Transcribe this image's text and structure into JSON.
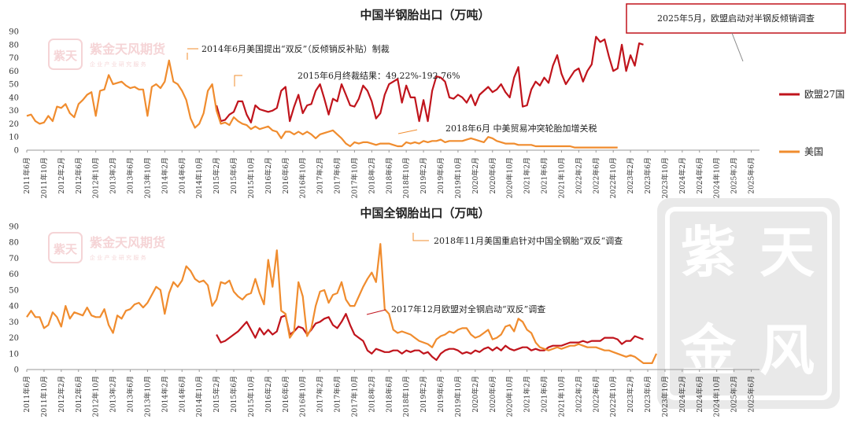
{
  "brand": {
    "name": "紫金天风期货",
    "tagline": "企 业 产 业   研 究 服 务",
    "seal_text": "紫天金风"
  },
  "colors": {
    "eu27": "#C0141C",
    "us": "#F08C2E",
    "annotation_box_border": "#C0141C",
    "axis": "#999999",
    "watermark": "#E9C6C8"
  },
  "x_tick_labels": [
    "2011年6月",
    "2011年10月",
    "2012年2月",
    "2012年6月",
    "2012年10月",
    "2013年2月",
    "2013年6月",
    "2013年10月",
    "2014年2月",
    "2014年6月",
    "2014年10月",
    "2015年2月",
    "2015年6月",
    "2015年10月",
    "2016年2月",
    "2016年6月",
    "2016年10月",
    "2017年2月",
    "2017年6月",
    "2017年10月",
    "2018年2月",
    "2018年6月",
    "2018年10月",
    "2019年2月",
    "2019年6月",
    "2019年10月",
    "2020年2月",
    "2020年6月",
    "2020年10月",
    "2021年2月",
    "2021年6月",
    "2021年10月",
    "2022年2月",
    "2022年6月",
    "2022年10月",
    "2023年2月",
    "2023年6月",
    "2023年10月",
    "2024年2月",
    "2024年6月",
    "2024年10月",
    "2025年2月",
    "2025年6月"
  ],
  "chart_data": [
    {
      "type": "line",
      "title": "中国半钢胎出口（万吨）",
      "ylim": [
        0,
        90
      ],
      "yticks": [
        0,
        10,
        20,
        30,
        40,
        50,
        60,
        70,
        80,
        90
      ],
      "legend_position": "right",
      "series": [
        {
          "name": "欧盟27国",
          "color": "#C0141C",
          "start_month": "2015年2月",
          "values": [
            34,
            22,
            23,
            27,
            29,
            37,
            37,
            27,
            21,
            34,
            31,
            30,
            29,
            30,
            32,
            45,
            48,
            22,
            33,
            42,
            28,
            34,
            35,
            45,
            50,
            39,
            27,
            39,
            37,
            50,
            42,
            34,
            33,
            39,
            49,
            45,
            37,
            24,
            28,
            42,
            50,
            52,
            54,
            36,
            49,
            40,
            40,
            22,
            38,
            22,
            45,
            56,
            55,
            52,
            40,
            39,
            42,
            40,
            36,
            42,
            34,
            42,
            45,
            48,
            44,
            46,
            50,
            44,
            40,
            55,
            63,
            33,
            34,
            46,
            52,
            49,
            55,
            51,
            64,
            72,
            58,
            50,
            55,
            60,
            62,
            52,
            60,
            65,
            86,
            82,
            84,
            71,
            60,
            62,
            80,
            60,
            72,
            64,
            81,
            80
          ]
        },
        {
          "name": "美国",
          "color": "#F08C2E",
          "start_month": "2011年6月",
          "values": [
            26,
            27,
            22,
            20,
            21,
            26,
            22,
            33,
            32,
            35,
            28,
            25,
            35,
            38,
            42,
            44,
            26,
            45,
            46,
            57,
            50,
            51,
            52,
            49,
            47,
            48,
            46,
            46,
            26,
            48,
            50,
            47,
            52,
            68,
            52,
            50,
            45,
            38,
            24,
            17,
            20,
            28,
            45,
            50,
            30,
            20,
            21,
            19,
            25,
            22,
            20,
            19,
            16,
            18,
            16,
            17,
            18,
            15,
            14,
            9,
            14,
            14,
            12,
            14,
            12,
            14,
            12,
            9,
            12,
            13,
            14,
            15,
            12,
            9,
            5,
            3,
            6,
            5,
            6,
            6,
            5,
            4,
            5,
            5,
            5,
            4,
            3,
            3,
            6,
            5,
            6,
            5,
            7,
            6,
            7,
            7,
            8,
            6,
            7,
            7,
            7,
            7,
            8,
            9,
            8,
            7,
            6,
            10,
            9,
            7,
            6,
            5,
            5,
            5,
            4,
            4,
            4,
            4,
            3,
            3,
            3,
            3,
            3,
            3,
            3,
            3,
            3,
            2,
            2,
            2,
            2,
            2,
            2,
            2,
            2,
            2,
            2,
            2
          ]
        }
      ],
      "annotations": [
        {
          "text": "2014年6月美国提出“双反”（反倾销反补贴）制裁",
          "month": "2014年6月"
        },
        {
          "text": "2015年6月终裁结果：49.22%-192.76%",
          "month": "2015年6月"
        },
        {
          "text": "2018年6月 中美贸易冲突轮胎加增关税",
          "month": "2018年6月"
        },
        {
          "text": "2025年5月，欧盟启动对半钢反倾销调查",
          "month": "2025年5月",
          "boxed": true
        }
      ]
    },
    {
      "type": "line",
      "title": "中国全钢胎出口（万吨）",
      "ylim": [
        0,
        90
      ],
      "yticks": [
        0,
        10,
        20,
        30,
        40,
        50,
        60,
        70,
        80,
        90
      ],
      "series": [
        {
          "name": "欧盟27国",
          "color": "#C0141C",
          "start_month": "2015年2月",
          "values": [
            22,
            17,
            18,
            20,
            22,
            24,
            27,
            30,
            25,
            20,
            26,
            22,
            25,
            22,
            24,
            33,
            34,
            22,
            24,
            27,
            26,
            22,
            25,
            29,
            30,
            32,
            33,
            28,
            26,
            30,
            35,
            28,
            22,
            20,
            18,
            12,
            10,
            13,
            12,
            11,
            11,
            12,
            12,
            10,
            12,
            11,
            12,
            12,
            10,
            11,
            8,
            6,
            10,
            12,
            13,
            13,
            12,
            10,
            11,
            10,
            12,
            11,
            13,
            14,
            12,
            14,
            12,
            15,
            13,
            12,
            13,
            14,
            14,
            12,
            13,
            12,
            12,
            14,
            15,
            15,
            15,
            16,
            17,
            17,
            17,
            18,
            17,
            18,
            18,
            18,
            20,
            20,
            20,
            19,
            16,
            18,
            18,
            21,
            20,
            19
          ]
        },
        {
          "name": "美国",
          "color": "#F08C2E",
          "start_month": "2011年6月",
          "values": [
            33,
            37,
            33,
            33,
            26,
            28,
            36,
            33,
            27,
            40,
            32,
            36,
            35,
            34,
            39,
            34,
            33,
            33,
            38,
            28,
            23,
            34,
            32,
            37,
            38,
            41,
            42,
            39,
            42,
            47,
            52,
            50,
            35,
            48,
            55,
            52,
            56,
            65,
            62,
            57,
            55,
            56,
            53,
            40,
            44,
            55,
            54,
            56,
            49,
            46,
            44,
            47,
            48,
            57,
            48,
            41,
            69,
            52,
            75,
            37,
            35,
            20,
            24,
            55,
            46,
            21,
            26,
            40,
            49,
            50,
            42,
            47,
            48,
            55,
            44,
            40,
            40,
            46,
            52,
            57,
            61,
            55,
            79,
            38,
            35,
            25,
            23,
            24,
            23,
            22,
            20,
            18,
            17,
            16,
            14,
            19,
            21,
            22,
            24,
            23,
            25,
            26,
            26,
            22,
            20,
            21,
            23,
            25,
            19,
            20,
            22,
            27,
            28,
            24,
            32,
            30,
            25,
            23,
            17,
            14,
            13,
            12,
            13,
            14,
            13,
            14,
            15,
            15,
            16,
            15,
            14,
            14,
            14,
            13,
            12,
            12,
            11,
            10,
            9,
            8,
            9,
            8,
            6,
            4,
            4,
            4,
            10
          ]
        }
      ],
      "annotations": [
        {
          "text": "2018年11月美国重启针对中国全钢胎“双反“调查",
          "month": "2018年11月"
        },
        {
          "text": "2017年12月欧盟对全钢启动“双反”调查",
          "month": "2017年12月"
        }
      ]
    }
  ]
}
